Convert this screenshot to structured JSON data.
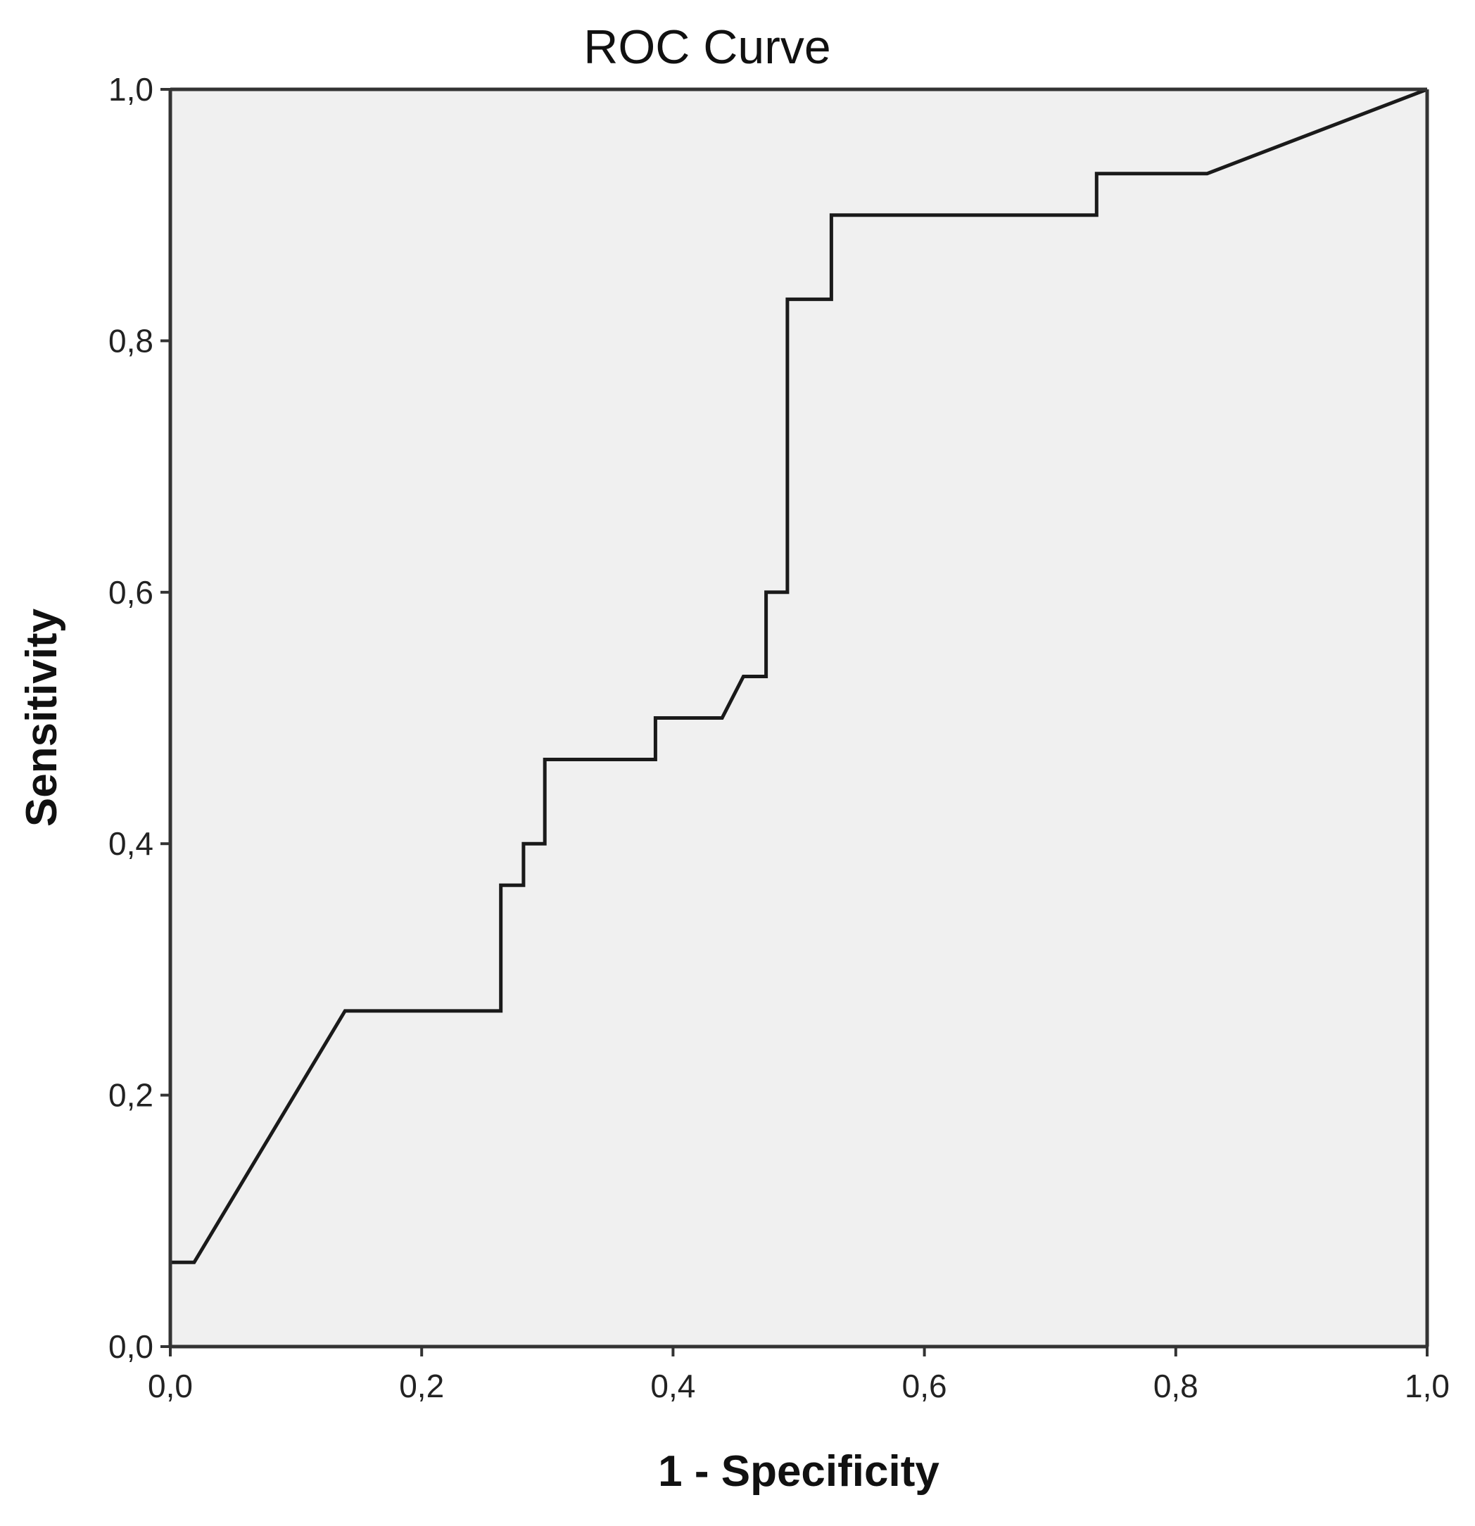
{
  "chart_data": {
    "type": "line",
    "title": "ROC Curve",
    "xlabel": "1 - Specificity",
    "ylabel": "Sensitivity",
    "xlim": [
      0,
      1
    ],
    "ylim": [
      0,
      1
    ],
    "grid": false,
    "x_ticks": [
      "0,0",
      "0,2",
      "0,4",
      "0,6",
      "0,8",
      "1,0"
    ],
    "y_ticks": [
      "0,0",
      "0,2",
      "0,4",
      "0,6",
      "0,8",
      "1,0"
    ],
    "x_tick_values": [
      0,
      0.2,
      0.4,
      0.6,
      0.8,
      1.0
    ],
    "y_tick_values": [
      0,
      0.2,
      0.4,
      0.6,
      0.8,
      1.0
    ],
    "colors": {
      "plot_background": "#f0f0f0",
      "line": "#1a1a1a",
      "frame": "#333333"
    },
    "series": [
      {
        "x": [
          0.0,
          0.0,
          0.019,
          0.139,
          0.263,
          0.263,
          0.281,
          0.281,
          0.298,
          0.298,
          0.386,
          0.386,
          0.439,
          0.456,
          0.474,
          0.474,
          0.491,
          0.491,
          0.526,
          0.526,
          0.737,
          0.737,
          0.825,
          1.0
        ],
        "y": [
          0.0,
          0.067,
          0.067,
          0.267,
          0.267,
          0.367,
          0.367,
          0.4,
          0.4,
          0.467,
          0.467,
          0.5,
          0.5,
          0.533,
          0.533,
          0.6,
          0.6,
          0.833,
          0.833,
          0.9,
          0.9,
          0.933,
          0.933,
          1.0
        ]
      }
    ]
  }
}
